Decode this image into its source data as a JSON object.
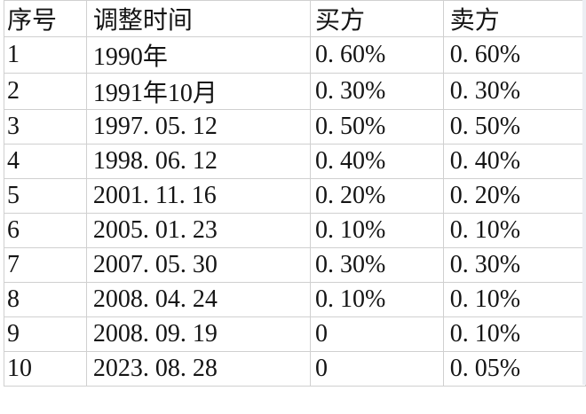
{
  "table": {
    "columns": [
      {
        "key": "num",
        "label": "序号"
      },
      {
        "key": "date",
        "label": "调整时间"
      },
      {
        "key": "buyer",
        "label": "买方"
      },
      {
        "key": "seller",
        "label": "卖方"
      }
    ],
    "rows": [
      {
        "cells": [
          {
            "text": "1",
            "red": false
          },
          {
            "text": "1990年",
            "red": false
          },
          {
            "text": "0. 60%",
            "red": false
          },
          {
            "text": "0. 60%",
            "red": false
          }
        ]
      },
      {
        "cells": [
          {
            "text": "2",
            "red": false
          },
          {
            "text": "1991年10月",
            "red": false
          },
          {
            "text": "0. 30%",
            "red": false
          },
          {
            "text": "0. 30%",
            "red": false
          }
        ]
      },
      {
        "cells": [
          {
            "text": "3",
            "red": true
          },
          {
            "text": "1997. 05. 12",
            "red": true
          },
          {
            "text": "0. 50%",
            "red": true
          },
          {
            "text": "0. 50%",
            "red": true
          }
        ]
      },
      {
        "cells": [
          {
            "text": "4",
            "red": false
          },
          {
            "text": "1998. 06. 12",
            "red": false
          },
          {
            "text": "0. 40%",
            "red": false
          },
          {
            "text": "0. 40%",
            "red": false
          }
        ]
      },
      {
        "cells": [
          {
            "text": "5",
            "red": false
          },
          {
            "text": "2001. 11. 16",
            "red": false
          },
          {
            "text": "0. 20%",
            "red": false
          },
          {
            "text": "0. 20%",
            "red": false
          }
        ]
      },
      {
        "cells": [
          {
            "text": "6",
            "red": false
          },
          {
            "text": "2005. 01. 23",
            "red": false
          },
          {
            "text": "0. 10%",
            "red": false
          },
          {
            "text": "0. 10%",
            "red": false
          }
        ]
      },
      {
        "cells": [
          {
            "text": "7",
            "red": false
          },
          {
            "text": "2007. 05. 30",
            "red": false
          },
          {
            "text": "0. 30%",
            "red": false
          },
          {
            "text": "0. 30%",
            "red": false
          }
        ]
      },
      {
        "cells": [
          {
            "text": "8",
            "red": true
          },
          {
            "text": "2008. 04. 24",
            "red": true
          },
          {
            "text": "0. 10%",
            "red": true
          },
          {
            "text": "0. 10%",
            "red": true
          }
        ]
      },
      {
        "cells": [
          {
            "text": "9",
            "red": false
          },
          {
            "text": "2008. 09. 19",
            "red": false
          },
          {
            "text": "0",
            "red": false
          },
          {
            "text": "0. 10%",
            "red": false
          }
        ]
      },
      {
        "cells": [
          {
            "text": "10",
            "red": false
          },
          {
            "text": "2023. 08. 28",
            "red": false
          },
          {
            "text": "0",
            "red": false
          },
          {
            "text": "0. 05%",
            "red": true
          }
        ]
      }
    ]
  },
  "colors": {
    "red": "#e00000",
    "grid": "#d0d0d0",
    "text": "#141414",
    "background": "#ffffff",
    "right_gutter": "#eceef3"
  }
}
